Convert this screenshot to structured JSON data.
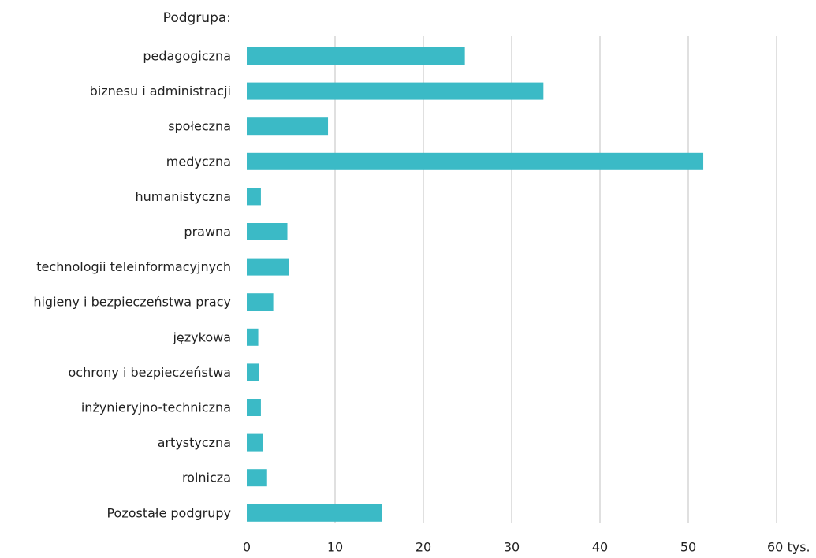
{
  "chart_data": {
    "type": "bar",
    "orientation": "horizontal",
    "category_header": "Podgrupa:",
    "categories": [
      "pedagogiczna",
      "biznesu i administracji",
      "społeczna",
      "medyczna",
      "humanistyczna",
      "prawna",
      "technologii teleinformacyjnych",
      "higieny i bezpieczeństwa pracy",
      "językowa",
      "ochrony i bezpieczeństwa",
      "inżynieryjno-techniczna",
      "artystyczna",
      "rolnicza",
      "Pozostałe podgrupy"
    ],
    "values": [
      24.7,
      33.6,
      9.2,
      51.7,
      1.6,
      4.6,
      4.8,
      3.0,
      1.3,
      1.4,
      1.6,
      1.8,
      2.3,
      15.3
    ],
    "xlim": [
      0,
      60
    ],
    "xticks": [
      0,
      10,
      20,
      30,
      40,
      50,
      60
    ],
    "xtick_labels": [
      "0",
      "10",
      "20",
      "30",
      "40",
      "50",
      "60 tys."
    ],
    "grid": true,
    "bar_color": "#3BBAC6",
    "grid_color": "#D5D5D5"
  }
}
